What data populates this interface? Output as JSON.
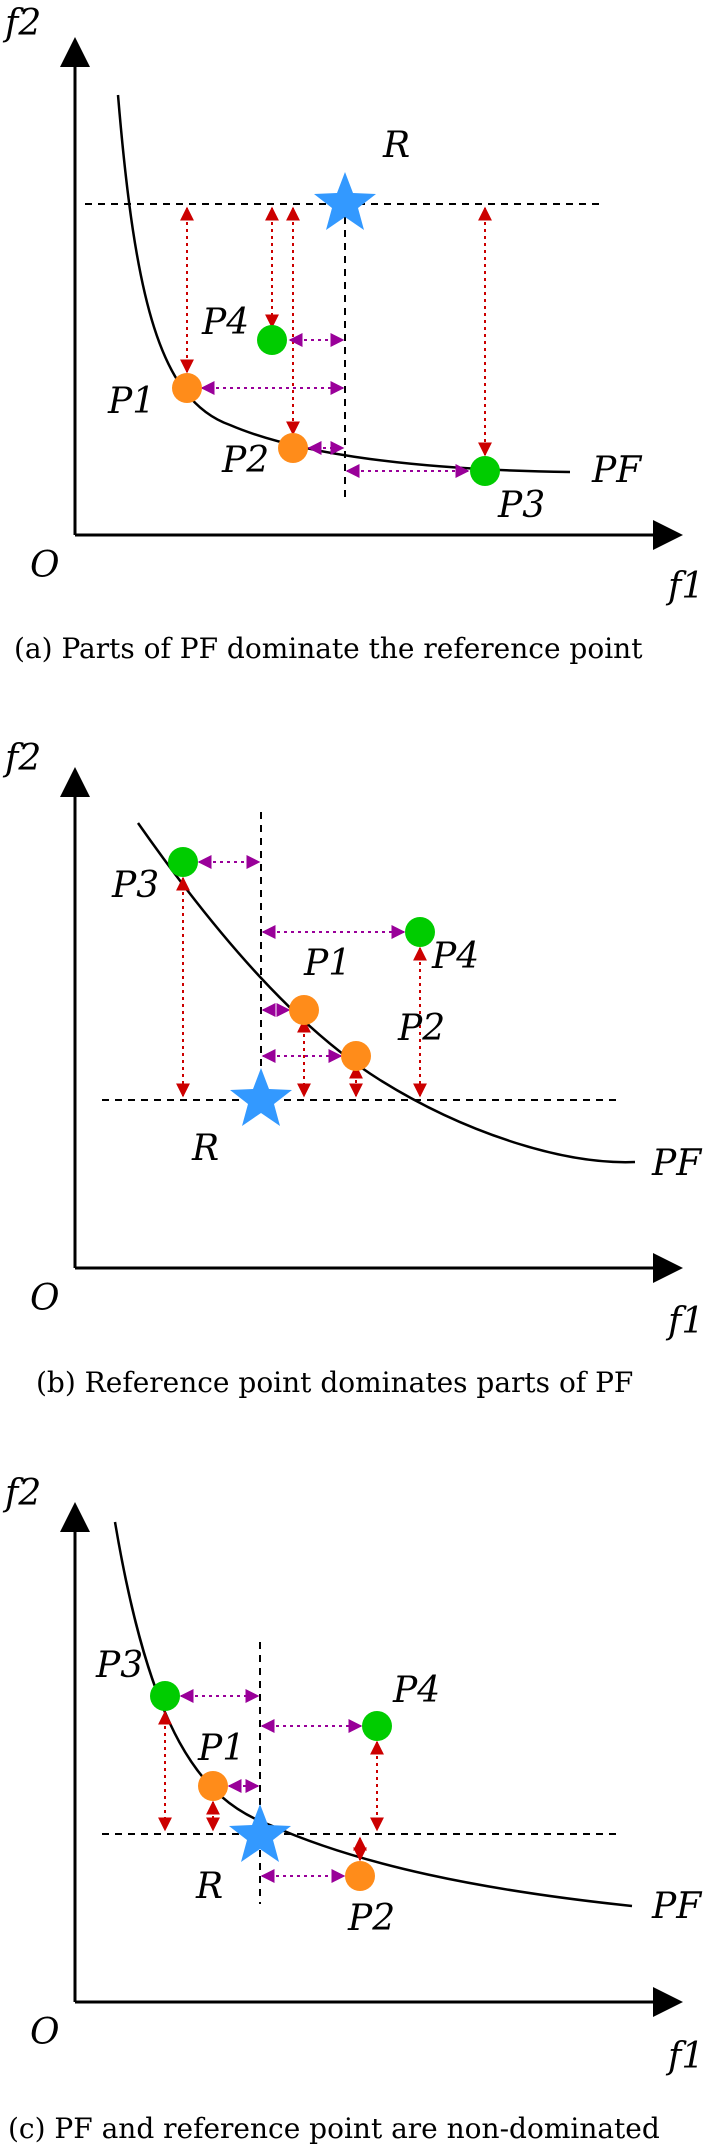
{
  "colors": {
    "ideal": "#00cc00",
    "pareto": "#ff8c1a",
    "reference": "#3399ff",
    "vertical_arrow": "#cc0000",
    "horizontal_arrow": "#990099",
    "curve": "#000000",
    "dashed": "#000000"
  },
  "panels": [
    {
      "labels": {
        "y_axis": "f2",
        "x_axis": "f1",
        "origin": "O",
        "reference": "R",
        "front": "PF",
        "p1": "P1",
        "p2": "P2",
        "p3": "P3",
        "p4": "P4"
      },
      "caption": "(a) Parts of PF dominate the reference point"
    },
    {
      "labels": {
        "y_axis": "f2",
        "x_axis": "f1",
        "origin": "O",
        "reference": "R",
        "front": "PF",
        "p1": "P1",
        "p2": "P2",
        "p3": "P3",
        "p4": "P4"
      },
      "caption": "(b) Reference point dominates parts of PF"
    },
    {
      "labels": {
        "y_axis": "f2",
        "x_axis": "f1",
        "origin": "O",
        "reference": "R",
        "front": "PF",
        "p1": "P1",
        "p2": "P2",
        "p3": "P3",
        "p4": "P4"
      },
      "caption": "(c) PF and reference point are non-dominated"
    }
  ]
}
